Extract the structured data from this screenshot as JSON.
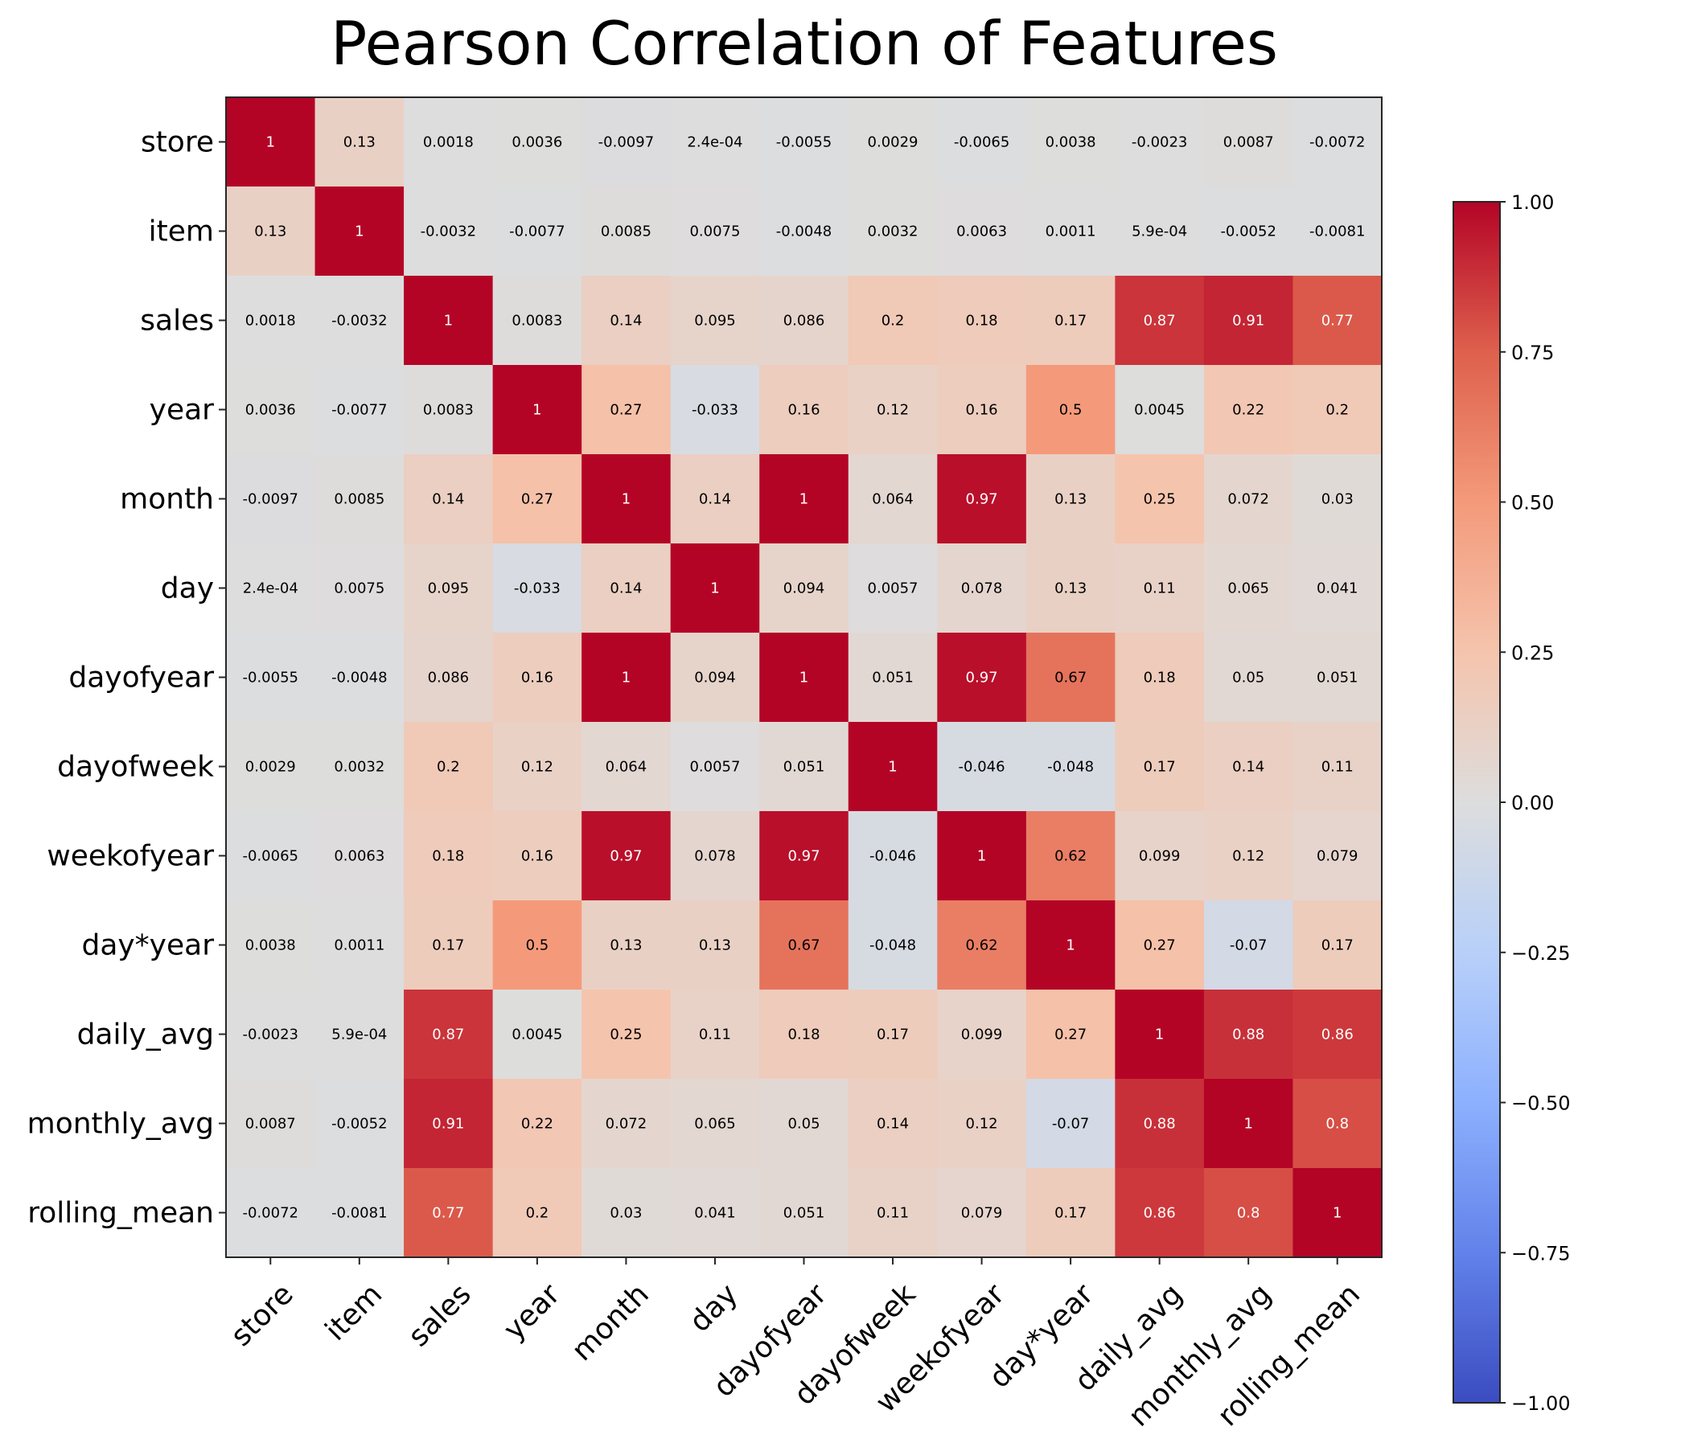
{
  "chart_data": {
    "type": "heatmap",
    "title": "Pearson Correlation of Features",
    "xlabel": "",
    "ylabel": "",
    "colormap": "coolwarm",
    "value_range": [
      -1.0,
      1.0
    ],
    "labels": [
      "store",
      "item",
      "sales",
      "year",
      "month",
      "day",
      "dayofyear",
      "dayofweek",
      "weekofyear",
      "day*year",
      "daily_avg",
      "monthly_avg",
      "rolling_mean"
    ],
    "matrix": [
      [
        1,
        0.13,
        0.0018,
        0.0036,
        -0.0097,
        0.00024,
        -0.0055,
        0.0029,
        -0.0065,
        0.0038,
        -0.0023,
        0.0087,
        -0.0072
      ],
      [
        0.13,
        1,
        -0.0032,
        -0.0077,
        0.0085,
        0.0075,
        -0.0048,
        0.0032,
        0.0063,
        0.0011,
        0.00059,
        -0.0052,
        -0.0081
      ],
      [
        0.0018,
        -0.0032,
        1,
        0.0083,
        0.14,
        0.095,
        0.086,
        0.2,
        0.18,
        0.17,
        0.87,
        0.91,
        0.77
      ],
      [
        0.0036,
        -0.0077,
        0.0083,
        1,
        0.27,
        -0.033,
        0.16,
        0.12,
        0.16,
        0.5,
        0.0045,
        0.22,
        0.2
      ],
      [
        -0.0097,
        0.0085,
        0.14,
        0.27,
        1,
        0.14,
        1,
        0.064,
        0.97,
        0.13,
        0.25,
        0.072,
        0.03
      ],
      [
        0.00024,
        0.0075,
        0.095,
        -0.033,
        0.14,
        1,
        0.094,
        0.0057,
        0.078,
        0.13,
        0.11,
        0.065,
        0.041
      ],
      [
        -0.0055,
        -0.0048,
        0.086,
        0.16,
        1,
        0.094,
        1,
        0.051,
        0.97,
        0.67,
        0.18,
        0.05,
        0.051
      ],
      [
        0.0029,
        0.0032,
        0.2,
        0.12,
        0.064,
        0.0057,
        0.051,
        1,
        -0.046,
        -0.048,
        0.17,
        0.14,
        0.11
      ],
      [
        -0.0065,
        0.0063,
        0.18,
        0.16,
        0.97,
        0.078,
        0.97,
        -0.046,
        1,
        0.62,
        0.099,
        0.12,
        0.079
      ],
      [
        0.0038,
        0.0011,
        0.17,
        0.5,
        0.13,
        0.13,
        0.67,
        -0.048,
        0.62,
        1,
        0.27,
        -0.07,
        0.17
      ],
      [
        -0.0023,
        0.00059,
        0.87,
        0.0045,
        0.25,
        0.11,
        0.18,
        0.17,
        0.099,
        0.27,
        1,
        0.88,
        0.86
      ],
      [
        0.0087,
        -0.0052,
        0.91,
        0.22,
        0.072,
        0.065,
        0.05,
        0.14,
        0.12,
        -0.07,
        0.88,
        1,
        0.8
      ],
      [
        -0.0072,
        -0.0081,
        0.77,
        0.2,
        0.03,
        0.041,
        0.051,
        0.11,
        0.079,
        0.17,
        0.86,
        0.8,
        1
      ]
    ],
    "annotations": [
      [
        "1",
        "0.13",
        "0.0018",
        "0.0036",
        "-0.0097",
        "2.4e-04",
        "-0.0055",
        "0.0029",
        "-0.0065",
        "0.0038",
        "-0.0023",
        "0.0087",
        "-0.0072"
      ],
      [
        "0.13",
        "1",
        "-0.0032",
        "-0.0077",
        "0.0085",
        "0.0075",
        "-0.0048",
        "0.0032",
        "0.0063",
        "0.0011",
        "5.9e-04",
        "-0.0052",
        "-0.0081"
      ],
      [
        "0.0018",
        "-0.0032",
        "1",
        "0.0083",
        "0.14",
        "0.095",
        "0.086",
        "0.2",
        "0.18",
        "0.17",
        "0.87",
        "0.91",
        "0.77"
      ],
      [
        "0.0036",
        "-0.0077",
        "0.0083",
        "1",
        "0.27",
        "-0.033",
        "0.16",
        "0.12",
        "0.16",
        "0.5",
        "0.0045",
        "0.22",
        "0.2"
      ],
      [
        "-0.0097",
        "0.0085",
        "0.14",
        "0.27",
        "1",
        "0.14",
        "1",
        "0.064",
        "0.97",
        "0.13",
        "0.25",
        "0.072",
        "0.03"
      ],
      [
        "2.4e-04",
        "0.0075",
        "0.095",
        "-0.033",
        "0.14",
        "1",
        "0.094",
        "0.0057",
        "0.078",
        "0.13",
        "0.11",
        "0.065",
        "0.041"
      ],
      [
        "-0.0055",
        "-0.0048",
        "0.086",
        "0.16",
        "1",
        "0.094",
        "1",
        "0.051",
        "0.97",
        "0.67",
        "0.18",
        "0.05",
        "0.051"
      ],
      [
        "0.0029",
        "0.0032",
        "0.2",
        "0.12",
        "0.064",
        "0.0057",
        "0.051",
        "1",
        "-0.046",
        "-0.048",
        "0.17",
        "0.14",
        "0.11"
      ],
      [
        "-0.0065",
        "0.0063",
        "0.18",
        "0.16",
        "0.97",
        "0.078",
        "0.97",
        "-0.046",
        "1",
        "0.62",
        "0.099",
        "0.12",
        "0.079"
      ],
      [
        "0.0038",
        "0.0011",
        "0.17",
        "0.5",
        "0.13",
        "0.13",
        "0.67",
        "-0.048",
        "0.62",
        "1",
        "0.27",
        "-0.07",
        "0.17"
      ],
      [
        "-0.0023",
        "5.9e-04",
        "0.87",
        "0.0045",
        "0.25",
        "0.11",
        "0.18",
        "0.17",
        "0.099",
        "0.27",
        "1",
        "0.88",
        "0.86"
      ],
      [
        "0.0087",
        "-0.0052",
        "0.91",
        "0.22",
        "0.072",
        "0.065",
        "0.05",
        "0.14",
        "0.12",
        "-0.07",
        "0.88",
        "1",
        "0.8"
      ],
      [
        "-0.0072",
        "-0.0081",
        "0.77",
        "0.2",
        "0.03",
        "0.041",
        "0.051",
        "0.11",
        "0.079",
        "0.17",
        "0.86",
        "0.8",
        "1"
      ]
    ],
    "colorbar": {
      "ticks": [
        1.0,
        0.75,
        0.5,
        0.25,
        0.0,
        -0.25,
        -0.5,
        -0.75,
        -1.0
      ],
      "tick_labels": [
        "1.00",
        "0.75",
        "0.50",
        "0.25",
        "0.00",
        "−0.25",
        "−0.50",
        "−0.75",
        "−1.00"
      ],
      "placement": "right"
    },
    "grid": false,
    "xtick_rotation_deg": 45
  }
}
